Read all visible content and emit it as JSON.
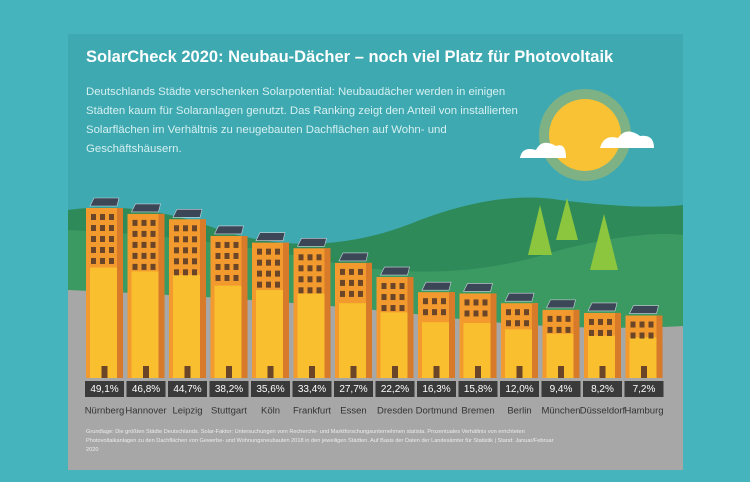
{
  "chart_data": {
    "type": "bar",
    "title": "SolarCheck 2020: Neubau-Dächer – noch viel Platz für Photovoltaik",
    "subtitle": "Deutschlands Städte verschenken Solarpotential: Neubaudächer werden in einigen Städten kaum für Solaranlagen genutzt. Das Ranking zeigt den Anteil von installierten Solarflächen im Verhältnis zu neugebauten Dachflächen auf Wohn- und Geschäftshäusern.",
    "categories": [
      "Nürnberg",
      "Hannover",
      "Leipzig",
      "Stuttgart",
      "Köln",
      "Frankfurt",
      "Essen",
      "Dresden",
      "Dortmund",
      "Bremen",
      "Berlin",
      "München",
      "Düsseldorf",
      "Hamburg"
    ],
    "values": [
      49.1,
      46.8,
      44.7,
      38.2,
      35.6,
      33.4,
      27.7,
      22.2,
      16.3,
      15.8,
      12.0,
      9.4,
      8.2,
      7.2
    ],
    "value_labels": [
      "49,1%",
      "46,8%",
      "44,7%",
      "38,2%",
      "35,6%",
      "33,4%",
      "27,7%",
      "22,2%",
      "16,3%",
      "15,8%",
      "12,0%",
      "9,4%",
      "8,2%",
      "7,2%"
    ],
    "color": "#f9bf2e",
    "note": "Grundlage: Die größten Städte Deutschlands. Solar-Faktor: Untersuchungen vom Recherche- und Marktforschungsunternehmen statista. Prozentuales Verhältnis von errichteten Photovoltaikanlagen zu den Dachflächen von Gewerbe- und Wohnungsneubauten 2018 in den jeweiligen Städten. Auf Basis der Daten der Landesämter für Statistik | Stand: Januar/Februar 2020"
  }
}
